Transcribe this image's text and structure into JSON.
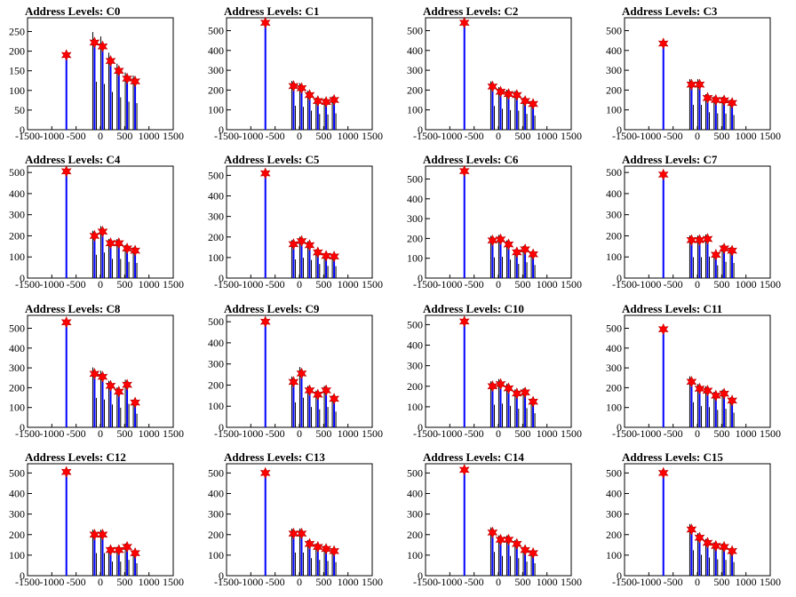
{
  "page": {
    "background": "#ffffff"
  },
  "style": {
    "hist_color": "#0000ff",
    "spike_color": "#000000",
    "marker_color": "#ff0000",
    "marker_stroke": "#bb0000"
  },
  "chart_data": [
    {
      "type": "bar",
      "title": "Address Levels: C0",
      "xlim": [
        -1500,
        1500
      ],
      "ylim": [
        0,
        285
      ],
      "yticks": [
        0,
        50,
        100,
        150,
        200,
        250
      ],
      "xticks": [
        -1500,
        -1000,
        -500,
        0,
        500,
        1000,
        1500
      ],
      "peaks_x": [
        -700,
        -120,
        45,
        210,
        380,
        550,
        715
      ],
      "peaks_y": [
        190,
        222,
        212,
        175,
        150,
        130,
        123
      ]
    },
    {
      "type": "bar",
      "title": "Address Levels: C1",
      "xlim": [
        -1500,
        1500
      ],
      "ylim": [
        0,
        565
      ],
      "yticks": [
        0,
        100,
        200,
        300,
        400,
        500
      ],
      "xticks": [
        -1500,
        -1000,
        -500,
        0,
        500,
        1000,
        1500
      ],
      "peaks_x": [
        -700,
        -120,
        45,
        210,
        380,
        550,
        715
      ],
      "peaks_y": [
        540,
        220,
        210,
        175,
        145,
        140,
        150
      ]
    },
    {
      "type": "bar",
      "title": "Address Levels: C2",
      "xlim": [
        -1500,
        1500
      ],
      "ylim": [
        0,
        565
      ],
      "yticks": [
        0,
        100,
        200,
        300,
        400,
        500
      ],
      "xticks": [
        -1500,
        -1000,
        -500,
        0,
        500,
        1000,
        1500
      ],
      "peaks_x": [
        -700,
        -120,
        45,
        210,
        380,
        550,
        715
      ],
      "peaks_y": [
        540,
        218,
        192,
        180,
        175,
        145,
        130
      ]
    },
    {
      "type": "bar",
      "title": "Address Levels: C3",
      "xlim": [
        -1500,
        1500
      ],
      "ylim": [
        0,
        565
      ],
      "yticks": [
        0,
        100,
        200,
        300,
        400,
        500
      ],
      "xticks": [
        -1500,
        -1000,
        -500,
        0,
        500,
        1000,
        1500
      ],
      "peaks_x": [
        -700,
        -120,
        45,
        210,
        380,
        550,
        715
      ],
      "peaks_y": [
        435,
        228,
        228,
        160,
        150,
        148,
        135
      ]
    },
    {
      "type": "bar",
      "title": "Address Levels: C4",
      "xlim": [
        -1500,
        1500
      ],
      "ylim": [
        0,
        530
      ],
      "yticks": [
        0,
        100,
        200,
        300,
        400,
        500
      ],
      "xticks": [
        -1500,
        -1000,
        -500,
        0,
        500,
        1000,
        1500
      ],
      "peaks_x": [
        -700,
        -120,
        45,
        210,
        380,
        550,
        715
      ],
      "peaks_y": [
        505,
        200,
        220,
        165,
        165,
        140,
        130
      ]
    },
    {
      "type": "bar",
      "title": "Address Levels: C5",
      "xlim": [
        -1500,
        1500
      ],
      "ylim": [
        0,
        545
      ],
      "yticks": [
        0,
        100,
        200,
        300,
        400,
        500
      ],
      "xticks": [
        -1500,
        -1000,
        -500,
        0,
        500,
        1000,
        1500
      ],
      "peaks_x": [
        -700,
        -120,
        45,
        210,
        380,
        550,
        715
      ],
      "peaks_y": [
        510,
        165,
        180,
        160,
        125,
        108,
        105
      ]
    },
    {
      "type": "bar",
      "title": "Address Levels: C6",
      "xlim": [
        -1500,
        1500
      ],
      "ylim": [
        0,
        565
      ],
      "yticks": [
        0,
        100,
        200,
        300,
        400,
        500
      ],
      "xticks": [
        -1500,
        -1000,
        -500,
        0,
        500,
        1000,
        1500
      ],
      "peaks_x": [
        -700,
        -120,
        45,
        210,
        380,
        550,
        715
      ],
      "peaks_y": [
        540,
        190,
        195,
        170,
        130,
        145,
        120
      ]
    },
    {
      "type": "bar",
      "title": "Address Levels: C7",
      "xlim": [
        -1500,
        1500
      ],
      "ylim": [
        0,
        530
      ],
      "yticks": [
        0,
        100,
        200,
        300,
        400,
        500
      ],
      "xticks": [
        -1500,
        -1000,
        -500,
        0,
        500,
        1000,
        1500
      ],
      "peaks_x": [
        -700,
        -120,
        45,
        210,
        380,
        550,
        715
      ],
      "peaks_y": [
        490,
        180,
        180,
        185,
        110,
        140,
        130
      ]
    },
    {
      "type": "bar",
      "title": "Address Levels: C8",
      "xlim": [
        -1500,
        1500
      ],
      "ylim": [
        0,
        565
      ],
      "yticks": [
        0,
        100,
        200,
        300,
        400,
        500
      ],
      "xticks": [
        -1500,
        -1000,
        -500,
        0,
        500,
        1000,
        1500
      ],
      "peaks_x": [
        -700,
        -120,
        45,
        210,
        380,
        550,
        715
      ],
      "peaks_y": [
        530,
        270,
        255,
        210,
        180,
        215,
        125
      ]
    },
    {
      "type": "bar",
      "title": "Address Levels: C9",
      "xlim": [
        -1500,
        1500
      ],
      "ylim": [
        0,
        530
      ],
      "yticks": [
        0,
        100,
        200,
        300,
        400,
        500
      ],
      "xticks": [
        -1500,
        -1000,
        -500,
        0,
        500,
        1000,
        1500
      ],
      "peaks_x": [
        -700,
        -120,
        45,
        210,
        380,
        550,
        715
      ],
      "peaks_y": [
        500,
        215,
        255,
        175,
        155,
        175,
        135
      ]
    },
    {
      "type": "bar",
      "title": "Address Levels: C10",
      "xlim": [
        -1500,
        1500
      ],
      "ylim": [
        0,
        545
      ],
      "yticks": [
        0,
        100,
        200,
        300,
        400,
        500
      ],
      "xticks": [
        -1500,
        -1000,
        -500,
        0,
        500,
        1000,
        1500
      ],
      "peaks_x": [
        -700,
        -120,
        45,
        210,
        380,
        550,
        715
      ],
      "peaks_y": [
        515,
        200,
        210,
        190,
        165,
        170,
        125
      ]
    },
    {
      "type": "bar",
      "title": "Address Levels: C11",
      "xlim": [
        -1500,
        1500
      ],
      "ylim": [
        0,
        565
      ],
      "yticks": [
        0,
        100,
        200,
        300,
        400,
        500
      ],
      "xticks": [
        -1500,
        -1000,
        -500,
        0,
        500,
        1000,
        1500
      ],
      "peaks_x": [
        -700,
        -120,
        45,
        210,
        380,
        550,
        715
      ],
      "peaks_y": [
        495,
        230,
        195,
        185,
        160,
        170,
        135
      ]
    },
    {
      "type": "bar",
      "title": "Address Levels: C12",
      "xlim": [
        -1500,
        1500
      ],
      "ylim": [
        0,
        545
      ],
      "yticks": [
        0,
        100,
        200,
        300,
        400,
        500
      ],
      "xticks": [
        -1500,
        -1000,
        -500,
        0,
        500,
        1000,
        1500
      ],
      "peaks_x": [
        -700,
        -120,
        45,
        210,
        380,
        550,
        715
      ],
      "peaks_y": [
        505,
        200,
        200,
        125,
        125,
        140,
        110
      ]
    },
    {
      "type": "bar",
      "title": "Address Levels: C13",
      "xlim": [
        -1500,
        1500
      ],
      "ylim": [
        0,
        545
      ],
      "yticks": [
        0,
        100,
        200,
        300,
        400,
        500
      ],
      "xticks": [
        -1500,
        -1000,
        -500,
        0,
        500,
        1000,
        1500
      ],
      "peaks_x": [
        -700,
        -120,
        45,
        210,
        380,
        550,
        715
      ],
      "peaks_y": [
        500,
        205,
        205,
        155,
        140,
        130,
        120
      ]
    },
    {
      "type": "bar",
      "title": "Address Levels: C14",
      "xlim": [
        -1500,
        1500
      ],
      "ylim": [
        0,
        545
      ],
      "yticks": [
        0,
        100,
        200,
        300,
        400,
        500
      ],
      "xticks": [
        -1500,
        -1000,
        -500,
        0,
        500,
        1000,
        1500
      ],
      "peaks_x": [
        -700,
        -120,
        45,
        210,
        380,
        550,
        715
      ],
      "peaks_y": [
        515,
        210,
        175,
        175,
        155,
        125,
        110
      ]
    },
    {
      "type": "bar",
      "title": "Address Levels: C15",
      "xlim": [
        -1500,
        1500
      ],
      "ylim": [
        0,
        545
      ],
      "yticks": [
        0,
        100,
        200,
        300,
        400,
        500
      ],
      "xticks": [
        -1500,
        -1000,
        -500,
        0,
        500,
        1000,
        1500
      ],
      "peaks_x": [
        -700,
        -120,
        45,
        210,
        380,
        550,
        715
      ],
      "peaks_y": [
        500,
        225,
        185,
        160,
        145,
        140,
        120
      ]
    }
  ]
}
